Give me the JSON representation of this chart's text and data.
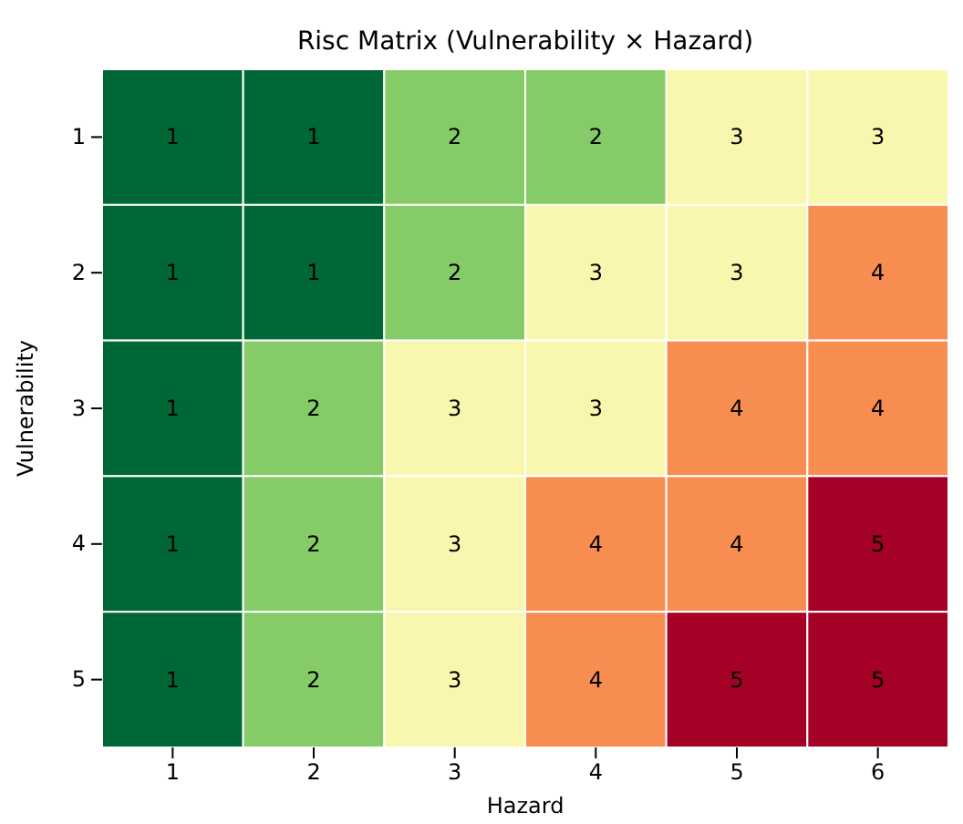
{
  "chart_data": {
    "type": "heatmap",
    "title": "Risc Matrix (Vulnerability × Hazard)",
    "xlabel": "Hazard",
    "ylabel": "Vulnerability",
    "categories": [
      "1",
      "2",
      "3",
      "4",
      "5",
      "6"
    ],
    "y_categories": [
      "1",
      "2",
      "3",
      "4",
      "5"
    ],
    "cells": [
      [
        1,
        1,
        2,
        2,
        3,
        3
      ],
      [
        1,
        1,
        2,
        3,
        3,
        4
      ],
      [
        1,
        2,
        3,
        3,
        4,
        4
      ],
      [
        1,
        2,
        3,
        4,
        4,
        5
      ],
      [
        1,
        2,
        3,
        4,
        5,
        5
      ]
    ],
    "data_labels": true
  }
}
